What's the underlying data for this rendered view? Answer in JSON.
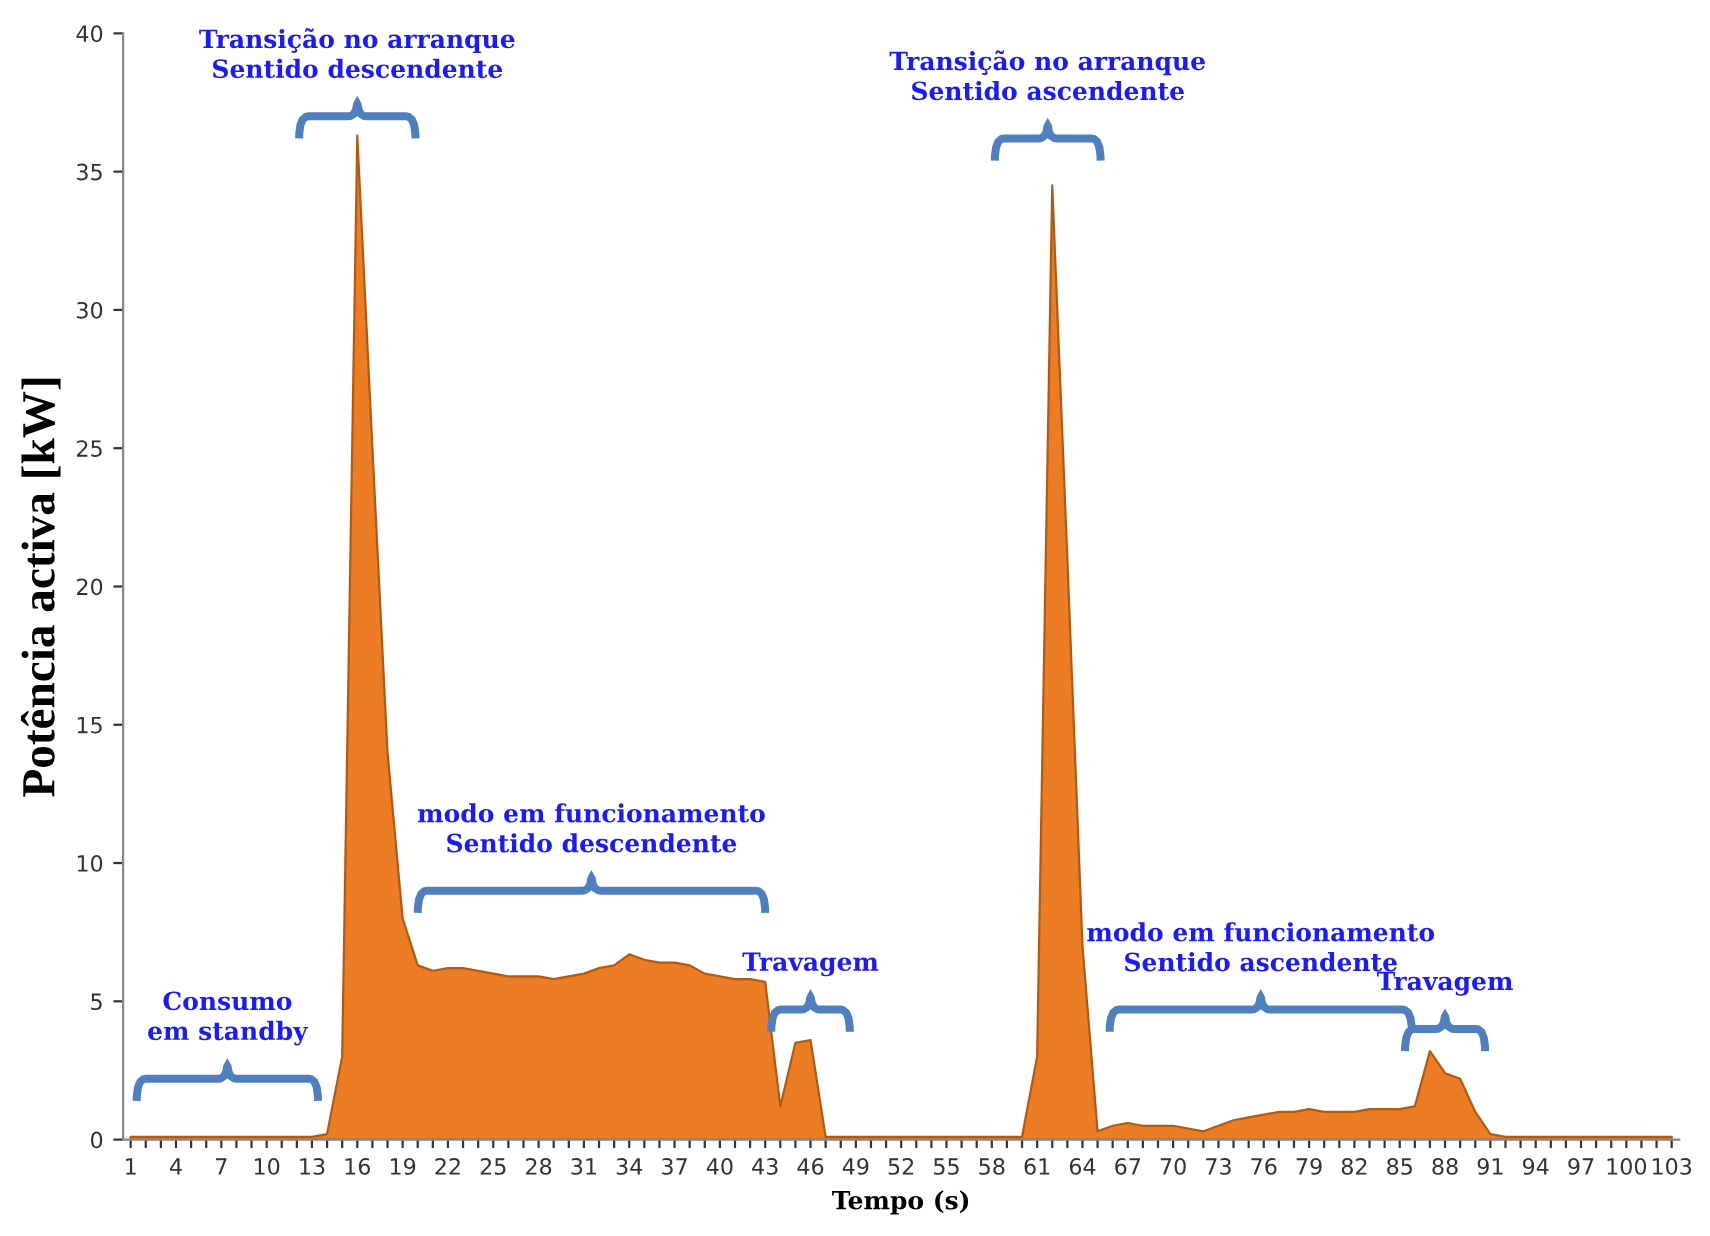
{
  "chart_data": {
    "type": "area",
    "xlabel": "Tempo (s)",
    "ylabel": "Potência activa [kW]",
    "categories": [
      "1",
      null,
      null,
      "4",
      null,
      null,
      "7",
      null,
      null,
      "10",
      null,
      null,
      "13",
      null,
      null,
      "16",
      null,
      null,
      "19",
      null,
      null,
      "22",
      null,
      null,
      "25",
      null,
      null,
      "28",
      null,
      null,
      "31",
      null,
      null,
      "34",
      null,
      null,
      "37",
      null,
      null,
      "40",
      null,
      null,
      "43",
      null,
      null,
      "46",
      null,
      null,
      "49",
      null,
      null,
      "52",
      null,
      null,
      "55",
      null,
      null,
      "58",
      null,
      null,
      "61",
      null,
      null,
      "64",
      null,
      null,
      "67",
      null,
      null,
      "70",
      null,
      null,
      "73",
      null,
      null,
      "76",
      null,
      null,
      "79",
      null,
      null,
      "82",
      null,
      null,
      "85",
      null,
      null,
      "88",
      null,
      null,
      "91",
      null,
      null,
      "94",
      null,
      null,
      "97",
      null,
      null,
      "100",
      null,
      null,
      "103"
    ],
    "series": [
      {
        "color": "#ec7d24",
        "values": [
          0.1,
          0.1,
          0.1,
          0.1,
          0.1,
          0.1,
          0.1,
          0.1,
          0.1,
          0.1,
          0.1,
          0.1,
          0.1,
          0.2,
          3,
          36.3,
          25,
          14,
          8,
          6.3,
          6.1,
          6.2,
          6.2,
          6.1,
          6.0,
          5.9,
          5.9,
          5.9,
          5.8,
          5.9,
          6.0,
          6.2,
          6.3,
          6.7,
          6.5,
          6.4,
          6.4,
          6.3,
          6.0,
          5.9,
          5.8,
          5.8,
          5.7,
          1.2,
          3.5,
          3.6,
          0.1,
          0.1,
          0.1,
          0.1,
          0.1,
          0.1,
          0.1,
          0.1,
          0.1,
          0.1,
          0.1,
          0.1,
          0.1,
          0.1,
          3,
          34.5,
          21,
          7,
          0.3,
          0.5,
          0.6,
          0.5,
          0.5,
          0.5,
          0.4,
          0.3,
          0.5,
          0.7,
          0.8,
          0.9,
          1.0,
          1.0,
          1.1,
          1.0,
          1.0,
          1.0,
          1.1,
          1.1,
          1.1,
          1.2,
          3.2,
          2.4,
          2.2,
          1.0,
          0.2,
          0.1,
          0.1,
          0.1,
          0.1,
          0.1,
          0.1,
          0.1,
          0.1,
          0.1,
          0.1,
          0.1,
          0.1
        ]
      }
    ],
    "ylim": [
      0,
      40
    ],
    "yticks": [
      0,
      5,
      10,
      15,
      20,
      25,
      30,
      35,
      40
    ],
    "grid": false,
    "legend": false,
    "annotations": [
      "Consumo\nem standby",
      "Transição no arranque\nSentido descendente",
      "modo em funcionamento\nSentido descendente",
      "Travagem",
      "Transição no arranque\nSentido ascendente",
      "modo em funcionamento\nSentido ascendente",
      "Travagem"
    ]
  }
}
